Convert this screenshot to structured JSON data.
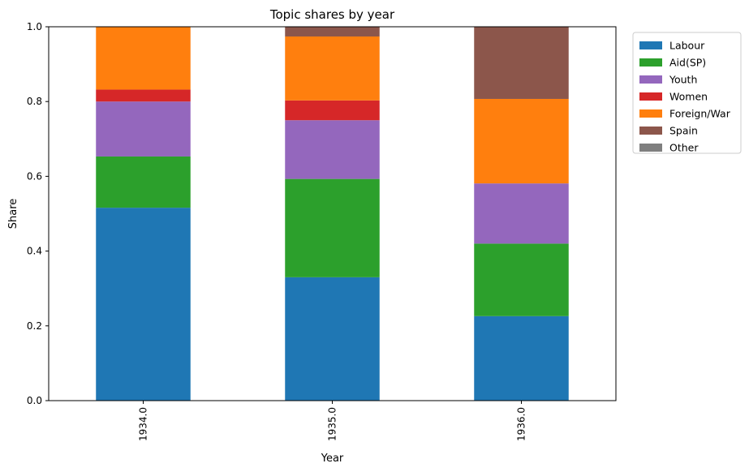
{
  "chart_data": {
    "type": "bar",
    "stacked": true,
    "title": "Topic shares by year",
    "xlabel": "Year",
    "ylabel": "Share",
    "categories": [
      "1934.0",
      "1935.0",
      "1936.0"
    ],
    "ylim": [
      0,
      1
    ],
    "yticks": [
      "0.0",
      "0.2",
      "0.4",
      "0.6",
      "0.8",
      "1.0"
    ],
    "grid": false,
    "legend_position": "outside-top-right",
    "series": [
      {
        "name": "Labour",
        "color": "#1f77b4",
        "values": [
          0.516,
          0.33,
          0.226
        ]
      },
      {
        "name": "Aid(SP)",
        "color": "#2ca02c",
        "values": [
          0.137,
          0.263,
          0.194
        ]
      },
      {
        "name": "Youth",
        "color": "#9467bd",
        "values": [
          0.147,
          0.157,
          0.161
        ]
      },
      {
        "name": "Women",
        "color": "#d62728",
        "values": [
          0.032,
          0.053,
          0.0
        ]
      },
      {
        "name": "Foreign/War",
        "color": "#ff7f0e",
        "values": [
          0.168,
          0.171,
          0.226
        ]
      },
      {
        "name": "Spain",
        "color": "#8c564b",
        "values": [
          0.0,
          0.026,
          0.193
        ]
      },
      {
        "name": "Other",
        "color": "#7f7f7f",
        "values": [
          0.0,
          0.0,
          0.0
        ]
      }
    ]
  }
}
